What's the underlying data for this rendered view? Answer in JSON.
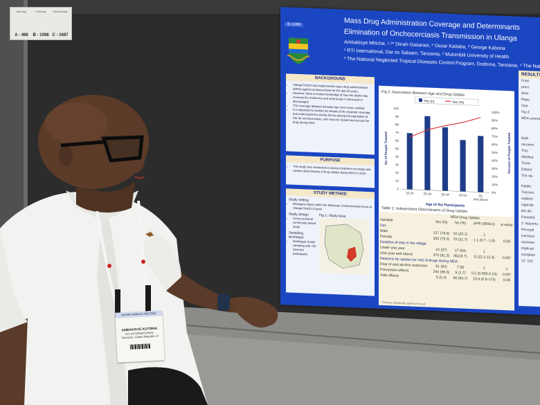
{
  "sign": {
    "columns": [
      {
        "day": "Monday",
        "code": "A - 488"
      },
      {
        "day": "Tuesday",
        "code": "B - 1098"
      },
      {
        "day": "Wednesday",
        "code": "C - 1687"
      }
    ]
  },
  "poster": {
    "number": "B-1099",
    "title_line1": "Mass Drug Administration Coverage and Determinants",
    "title_line2": "Elimination of Onchocerciasis Transmission in Ulanga",
    "authors": "Ambakisye Mhiche, ¹·³* Dinah Gasarasi, ² Oscar Kaitaba, ³ George Kabona",
    "affil1": "¹ RTI International, Dar es Salaam, Tanzania, ² Muhimbili University of Health",
    "affil2": "³ The National Neglected Tropical Diseases Control Program, Dodoma, Tanzania, ⁴ The Nati",
    "background": {
      "heading": "BACKGROUND",
      "items": [
        "Ulanga District has implemented mass drug administration (MDA) against onchocerciasis for the last 20 years.",
        "However, there is limited knowledge of how the district has received the medicines and what keeps it interested or discouraged.",
        "The coverage attained annually has never been verified.",
        "It is important to explore the details of the reported coverage and understand the driving forces among the population at risk for onchocerciasis, who must be treated and accept the drug during MDA."
      ]
    },
    "purpose": {
      "heading": "PURPOSE",
      "items": [
        "This study was conducted to assess treatment coverage and explore determinants of drug uptake during MDA in 2019."
      ]
    },
    "method": {
      "heading": "STUDY METHOD",
      "setting_label": "Study setting",
      "setting_text": "Morogoro region within the Mahenge Onchocerciasis focus at Ulanga District Council",
      "design_label": "Study design",
      "design_text": "Cross-sectional community-based study",
      "map_title": "Fig 1: Study Area",
      "sampling_label": "Sampling technique",
      "sampling_text": "Multistage cluster sampling with 702 selected participants"
    },
    "results": {
      "heading": "RESULTS",
      "items": [
        "From",
        "previ",
        "Amo",
        "Repo",
        "One",
        "Fig 3: ",
        "MDA coverage"
      ]
    },
    "results2": {
      "items": [
        "Both",
        "recomm",
        "This",
        "distribut",
        "There",
        "District",
        "The stu"
      ]
    },
    "results3": {
      "items": [
        "Katalo",
        "Transmi",
        "wadeiyi",
        "Uganda",
        "the dis",
        "Parasitol",
        "2. Ndyomu",
        "Percepti",
        "ivermect",
        "commun",
        "implicati",
        "complian",
        "12: 163"
      ]
    },
    "table": {
      "title": "Table 1: Independent Determinants of Drug Uptake",
      "header_group": "MDA Drug Uptake",
      "columns": [
        "Variable",
        "Yes (%)",
        "No (%)",
        "APR (95%CI)",
        "p-value"
      ],
      "rows": [
        {
          "type": "group",
          "cells": [
            "Sex"
          ]
        },
        {
          "type": "data",
          "cells": [
            "Male",
            "127 (79.9)",
            "32 (20.1)",
            "1",
            ""
          ]
        },
        {
          "type": "data",
          "cells": [
            "Female",
            "253 (78.3)",
            "70 (21.7)",
            "1.1 (0.7 - 1.8)",
            "0.69"
          ]
        },
        {
          "type": "group",
          "cells": [
            "Duration of stay in the village"
          ]
        },
        {
          "type": "data",
          "cells": [
            "Under one year",
            "10 (37)",
            "17 (63)",
            "1",
            ""
          ]
        },
        {
          "type": "data",
          "cells": [
            "One year and above",
            "370 (81.3)",
            "85(18.7)",
            "5.1(2.1-12.3)",
            "0.00*"
          ]
        },
        {
          "type": "group",
          "cells": [
            "Reasons for uptake (or not) of drugs during MDA"
          ]
        },
        {
          "type": "data",
          "cells": [
            "Fear of and alcohol restriction",
            "81 (92)",
            "7 (8)",
            "1",
            "1"
          ]
        },
        {
          "type": "data",
          "cells": [
            "Prevention effects",
            "294 (98.3)",
            "5 (1.7)",
            "0.2 (0.005-0.15)",
            "0.00*"
          ]
        },
        {
          "type": "data",
          "cells": [
            "Side effects",
            "5 (5.3)",
            "90 (94.7)",
            "10.6 (0.6-173)",
            "0.09"
          ]
        }
      ],
      "footnote": "* Denotes statistically significant result"
    }
  },
  "chart_data": {
    "type": "bar",
    "title": "Fig 2: Association Between Age and Drug Uptake",
    "legend": [
      "Yes (n)",
      "Yes (%)"
    ],
    "categories": [
      "15-24",
      "25-34",
      "35-44",
      "45-54",
      "55 and above"
    ],
    "series": [
      {
        "name": "Yes (n)",
        "type": "bar",
        "values": [
          70,
          92,
          79,
          64,
          70
        ]
      },
      {
        "name": "Yes (%)",
        "type": "line",
        "values": [
          65,
          75,
          81,
          86,
          93
        ]
      }
    ],
    "xlabel": "Age of the Participants",
    "ylabel": "No of People Treated",
    "y2label": "Percent of People Treated",
    "ylim": [
      0,
      100
    ],
    "yticks": [
      0,
      10,
      20,
      30,
      40,
      50,
      60,
      70,
      80,
      90,
      100
    ],
    "y2ticks": [
      "0%",
      "10%",
      "20%",
      "30%",
      "40%",
      "50%",
      "60%",
      "70%",
      "80%",
      "90%",
      "100%"
    ],
    "grid": false,
    "legend_position": "top"
  },
  "badge": {
    "header": "ASTMH ANNUAL MEETING",
    "name": "AMBAKISYE KUTORIA",
    "org": "RTI INTERNATIONAL",
    "country": "Tanzania, United Republic of"
  },
  "colors": {
    "poster_blue": "#1b46c2",
    "bar_navy": "#1f3c88",
    "line_red": "#d93030",
    "heading_cream": "#f5e8c8"
  }
}
